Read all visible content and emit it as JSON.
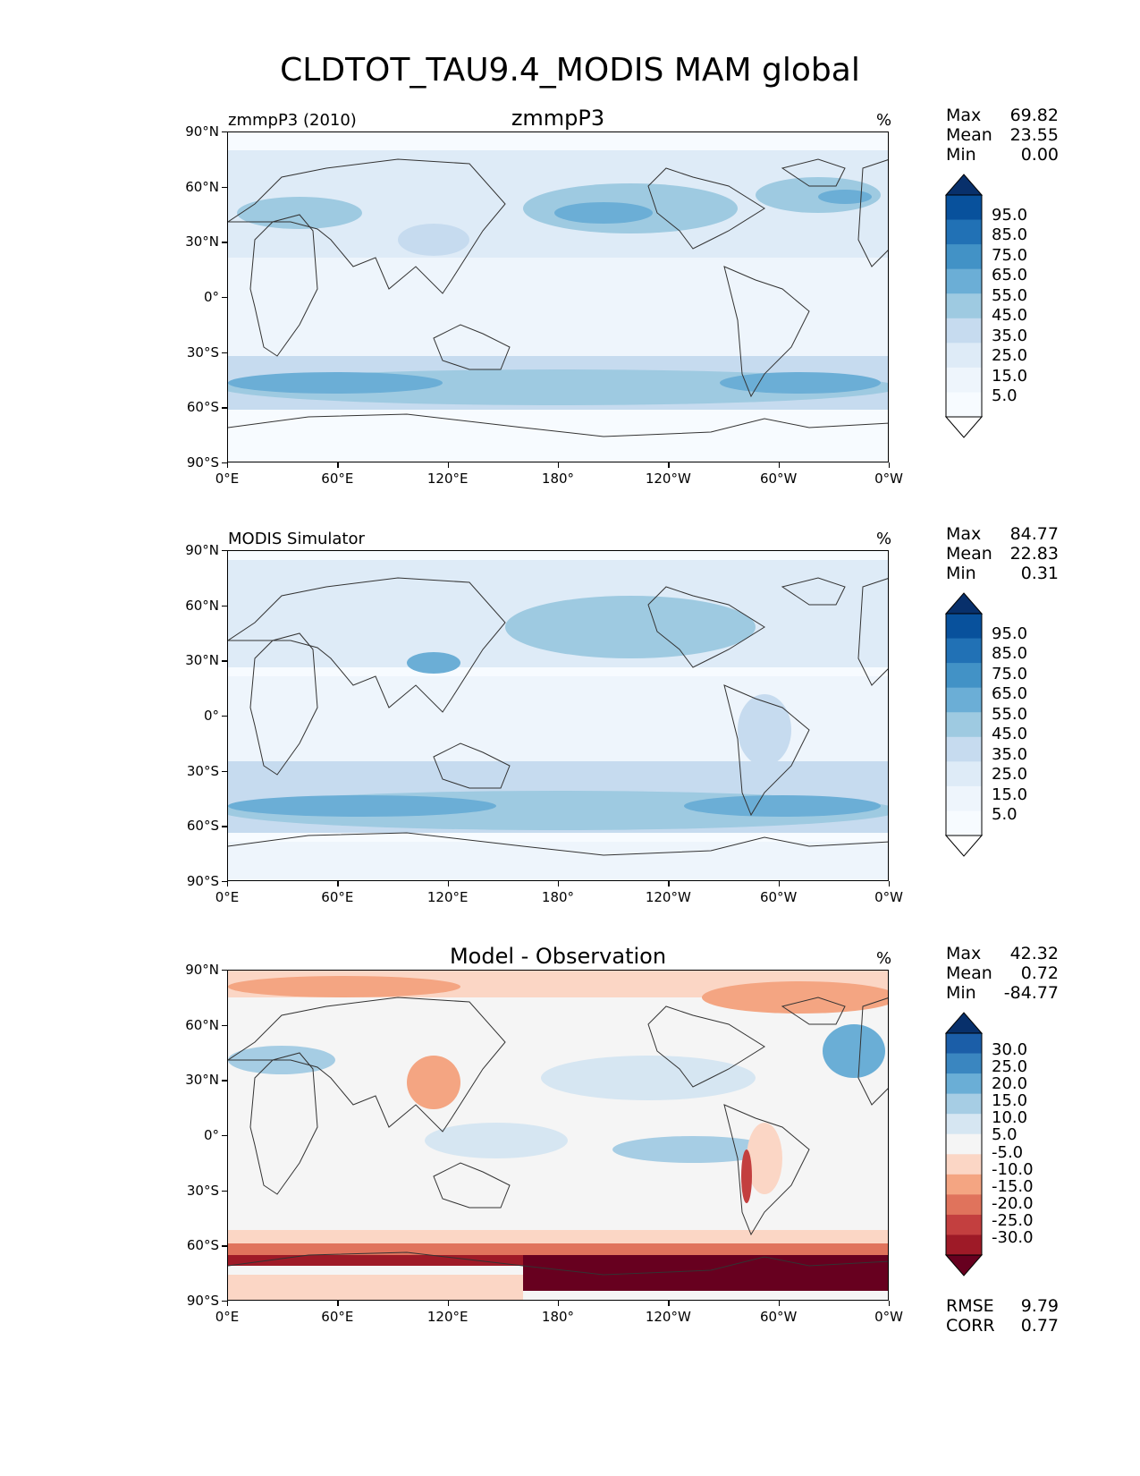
{
  "figure": {
    "title": "CLDTOT_TAU9.4_MODIS MAM global"
  },
  "axes": {
    "lat_ticks": [
      "90°N",
      "60°N",
      "30°N",
      "0°",
      "30°S",
      "60°S",
      "90°S"
    ],
    "lon_ticks": [
      "0°E",
      "60°E",
      "120°E",
      "180°",
      "120°W",
      "60°W",
      "0°W"
    ]
  },
  "panels": [
    {
      "left_title": "zmmpP3 (2010)",
      "center_title": "zmmpP3",
      "units": "%",
      "stats": [
        {
          "label": "Max",
          "value": "69.82"
        },
        {
          "label": "Mean",
          "value": "23.55"
        },
        {
          "label": "Min",
          "value": "0.00"
        }
      ],
      "colorbar_labels": [
        "95.0",
        "85.0",
        "75.0",
        "65.0",
        "55.0",
        "45.0",
        "35.0",
        "25.0",
        "15.0",
        "5.0"
      ],
      "colors": [
        "#08306b",
        "#08519c",
        "#2171b5",
        "#4292c6",
        "#6baed6",
        "#9ecae1",
        "#c6dbef",
        "#deebf7",
        "#eef5fc",
        "#f7fbff",
        "#ffffff"
      ]
    },
    {
      "left_title": "MODIS Simulator",
      "center_title": "",
      "units": "%",
      "stats": [
        {
          "label": "Max",
          "value": "84.77"
        },
        {
          "label": "Mean",
          "value": "22.83"
        },
        {
          "label": "Min",
          "value": "0.31"
        }
      ],
      "colorbar_labels": [
        "95.0",
        "85.0",
        "75.0",
        "65.0",
        "55.0",
        "45.0",
        "35.0",
        "25.0",
        "15.0",
        "5.0"
      ],
      "colors": [
        "#08306b",
        "#08519c",
        "#2171b5",
        "#4292c6",
        "#6baed6",
        "#9ecae1",
        "#c6dbef",
        "#deebf7",
        "#eef5fc",
        "#f7fbff",
        "#ffffff"
      ]
    },
    {
      "left_title": "",
      "center_title": "Model - Observation",
      "units": "%",
      "stats": [
        {
          "label": "Max",
          "value": "42.32"
        },
        {
          "label": "Mean",
          "value": "0.72"
        },
        {
          "label": "Min",
          "value": "-84.77"
        }
      ],
      "colorbar_labels": [
        "30.0",
        "25.0",
        "20.0",
        "15.0",
        "10.0",
        "5.0",
        "-5.0",
        "-10.0",
        "-15.0",
        "-20.0",
        "-25.0",
        "-30.0"
      ],
      "colors": [
        "#08306b",
        "#1b5ea8",
        "#3a86c0",
        "#6aaed6",
        "#a6cde4",
        "#d6e6f2",
        "#f5f5f5",
        "#fbd6c5",
        "#f4a582",
        "#e0735c",
        "#c33f3f",
        "#9e1a27",
        "#67001f"
      ],
      "extra_stats": [
        {
          "label": "RMSE",
          "value": "9.79"
        },
        {
          "label": "CORR",
          "value": "0.77"
        }
      ]
    }
  ]
}
